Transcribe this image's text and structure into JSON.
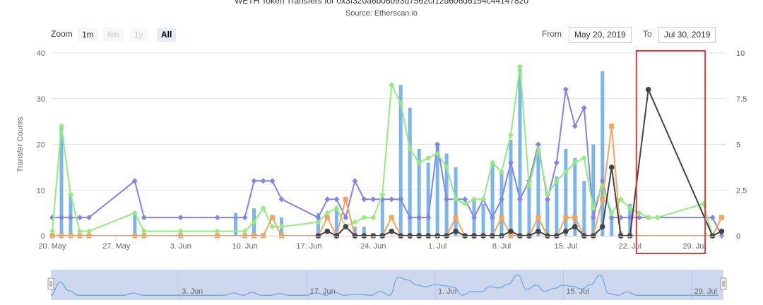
{
  "header": {
    "title": "WETH Token Transfers for 0x3f320a6b06b93d7562cf12d606d6154c44147820",
    "subtitle": "Source: Etherscan.io"
  },
  "zoom": {
    "label": "Zoom",
    "buttons": [
      {
        "label": "1m",
        "state": "normal"
      },
      {
        "label": "6m",
        "state": "disabled"
      },
      {
        "label": "1y",
        "state": "disabled"
      },
      {
        "label": "All",
        "state": "active"
      }
    ]
  },
  "range": {
    "from_label": "From",
    "from_value": "May 20, 2019",
    "to_label": "To",
    "to_value": "Jul 30, 2019"
  },
  "colors": {
    "bars": "#7cb5ec",
    "purple": "#8085e9",
    "green": "#90ed7d",
    "orange": "#f7a35c",
    "dark": "#434348",
    "highlight": "#e53935",
    "navigator_fill": "#cdd8ee"
  },
  "chart_data": {
    "type": "line",
    "start_date": "2019-05-20",
    "ylabel": "Transfer Counts",
    "yticks_left": [
      "0",
      "10",
      "20",
      "30",
      "40"
    ],
    "yticks_right": [
      "0",
      "2.5",
      "5",
      "7.5",
      "10"
    ],
    "ylim_left": [
      0,
      40
    ],
    "ylim_right": [
      0,
      10
    ],
    "xticks": [
      {
        "label": "20. May",
        "day": 0
      },
      {
        "label": "27. May",
        "day": 7
      },
      {
        "label": "3. Jun",
        "day": 14
      },
      {
        "label": "10. Jun",
        "day": 21
      },
      {
        "label": "17. Jun",
        "day": 28
      },
      {
        "label": "24. Jun",
        "day": 35
      },
      {
        "label": "1. Jul",
        "day": 42
      },
      {
        "label": "8. Jul",
        "day": 49
      },
      {
        "label": "15. Jul",
        "day": 56
      },
      {
        "label": "22. Jul",
        "day": 63
      },
      {
        "label": "29. Jul",
        "day": 70
      }
    ],
    "navigator_ticks": [
      {
        "label": "3. Jun",
        "day": 14
      },
      {
        "label": "17. Jun",
        "day": 28
      },
      {
        "label": "1. Jul",
        "day": 42
      },
      {
        "label": "15. Jul",
        "day": 56
      },
      {
        "label": "29. Jul",
        "day": 70
      }
    ],
    "highlight_days": [
      63.7,
      71.2
    ],
    "series": [
      {
        "name": "Transfers",
        "kind": "bar",
        "axis": "left",
        "data": [
          [
            1,
            24
          ],
          [
            2,
            9
          ],
          [
            9,
            5
          ],
          [
            20,
            5
          ],
          [
            22,
            6
          ],
          [
            25,
            4
          ],
          [
            29,
            5
          ],
          [
            31,
            6
          ],
          [
            33,
            2
          ],
          [
            34,
            2
          ],
          [
            36,
            8
          ],
          [
            38,
            33
          ],
          [
            39,
            28
          ],
          [
            40,
            19
          ],
          [
            41,
            16
          ],
          [
            42,
            20
          ],
          [
            43,
            18
          ],
          [
            44,
            15
          ],
          [
            46,
            8
          ],
          [
            47,
            7
          ],
          [
            48,
            16
          ],
          [
            49,
            14
          ],
          [
            50,
            21
          ],
          [
            51,
            37
          ],
          [
            52,
            11
          ],
          [
            53,
            19
          ],
          [
            54,
            8
          ],
          [
            55,
            13
          ],
          [
            56,
            19
          ],
          [
            57,
            17
          ],
          [
            58,
            12
          ],
          [
            59,
            20
          ],
          [
            60,
            36
          ],
          [
            61,
            4
          ],
          [
            62,
            1
          ],
          [
            63,
            7
          ]
        ]
      },
      {
        "name": "Purple",
        "kind": "line",
        "axis": "left",
        "data": [
          [
            0,
            4
          ],
          [
            1,
            4
          ],
          [
            2,
            4
          ],
          [
            3,
            4
          ],
          [
            4,
            4
          ],
          [
            9,
            12
          ],
          [
            10,
            4
          ],
          [
            14,
            4
          ],
          [
            18,
            4
          ],
          [
            21,
            4
          ],
          [
            22,
            12
          ],
          [
            23,
            12
          ],
          [
            24,
            12
          ],
          [
            25,
            8
          ],
          [
            29,
            4
          ],
          [
            30,
            8
          ],
          [
            31,
            8
          ],
          [
            32,
            4
          ],
          [
            33,
            12
          ],
          [
            34,
            8
          ],
          [
            35,
            8
          ],
          [
            36,
            8
          ],
          [
            37,
            8
          ],
          [
            38,
            8
          ],
          [
            39,
            4
          ],
          [
            40,
            4
          ],
          [
            41,
            4
          ],
          [
            42,
            20
          ],
          [
            43,
            8
          ],
          [
            44,
            8
          ],
          [
            45,
            8
          ],
          [
            46,
            4
          ],
          [
            47,
            8
          ],
          [
            48,
            4
          ],
          [
            49,
            8
          ],
          [
            50,
            16
          ],
          [
            51,
            8
          ],
          [
            52,
            12
          ],
          [
            53,
            20
          ],
          [
            54,
            8
          ],
          [
            55,
            16
          ],
          [
            56,
            32
          ],
          [
            57,
            24
          ],
          [
            58,
            28
          ],
          [
            59,
            4
          ],
          [
            60,
            12
          ],
          [
            61,
            4
          ],
          [
            62,
            4
          ],
          [
            63,
            4
          ],
          [
            64,
            4
          ],
          [
            65,
            4
          ],
          [
            66,
            4
          ],
          [
            72,
            4
          ],
          [
            73,
            0
          ]
        ]
      },
      {
        "name": "Green",
        "kind": "line",
        "axis": "left",
        "data": [
          [
            0,
            1
          ],
          [
            1,
            24
          ],
          [
            2,
            9
          ],
          [
            3,
            1
          ],
          [
            4,
            1
          ],
          [
            9,
            5
          ],
          [
            10,
            1
          ],
          [
            14,
            1
          ],
          [
            18,
            1
          ],
          [
            21,
            1
          ],
          [
            22,
            3
          ],
          [
            23,
            6
          ],
          [
            24,
            2
          ],
          [
            25,
            2
          ],
          [
            29,
            3
          ],
          [
            30,
            5
          ],
          [
            31,
            6
          ],
          [
            32,
            2
          ],
          [
            33,
            3
          ],
          [
            34,
            4
          ],
          [
            35,
            4
          ],
          [
            36,
            9
          ],
          [
            37,
            33
          ],
          [
            38,
            29
          ],
          [
            39,
            19
          ],
          [
            40,
            16
          ],
          [
            41,
            17
          ],
          [
            42,
            18
          ],
          [
            43,
            15
          ],
          [
            44,
            8
          ],
          [
            45,
            7
          ],
          [
            46,
            8
          ],
          [
            47,
            8
          ],
          [
            48,
            16
          ],
          [
            49,
            14
          ],
          [
            50,
            22
          ],
          [
            51,
            37
          ],
          [
            52,
            11
          ],
          [
            53,
            19
          ],
          [
            54,
            9
          ],
          [
            55,
            12
          ],
          [
            56,
            14
          ],
          [
            57,
            16
          ],
          [
            58,
            17
          ],
          [
            59,
            6
          ],
          [
            60,
            11
          ],
          [
            61,
            5
          ],
          [
            62,
            8
          ],
          [
            63,
            6
          ],
          [
            64,
            5
          ],
          [
            65,
            4
          ],
          [
            66,
            4
          ],
          [
            71,
            7
          ],
          [
            72,
            0
          ],
          [
            73,
            1
          ]
        ]
      },
      {
        "name": "Orange",
        "kind": "line",
        "axis": "right",
        "data": [
          [
            0,
            0
          ],
          [
            1,
            0
          ],
          [
            2,
            0
          ],
          [
            3,
            0
          ],
          [
            4,
            0
          ],
          [
            9,
            0
          ],
          [
            10,
            0
          ],
          [
            14,
            0
          ],
          [
            18,
            0
          ],
          [
            21,
            0
          ],
          [
            22,
            0
          ],
          [
            23,
            0
          ],
          [
            24,
            1
          ],
          [
            25,
            0
          ],
          [
            29,
            0
          ],
          [
            30,
            1
          ],
          [
            31,
            0
          ],
          [
            32,
            2
          ],
          [
            33,
            0
          ],
          [
            34,
            0
          ],
          [
            35,
            0
          ],
          [
            36,
            0
          ],
          [
            37,
            1
          ],
          [
            38,
            0
          ],
          [
            39,
            0
          ],
          [
            40,
            0
          ],
          [
            41,
            0
          ],
          [
            42,
            0
          ],
          [
            43,
            0
          ],
          [
            44,
            1
          ],
          [
            45,
            0
          ],
          [
            46,
            0
          ],
          [
            47,
            0
          ],
          [
            48,
            0
          ],
          [
            49,
            1
          ],
          [
            50,
            0
          ],
          [
            51,
            0
          ],
          [
            52,
            0
          ],
          [
            53,
            1
          ],
          [
            54,
            0
          ],
          [
            55,
            0
          ],
          [
            56,
            1
          ],
          [
            57,
            1
          ],
          [
            58,
            0
          ],
          [
            59,
            0
          ],
          [
            60,
            2
          ],
          [
            61,
            6
          ],
          [
            62,
            0
          ],
          [
            63,
            0
          ],
          [
            72,
            0
          ],
          [
            73,
            1
          ]
        ]
      },
      {
        "name": "Dark",
        "kind": "line",
        "axis": "right",
        "data": [
          [
            29,
            0
          ],
          [
            30,
            0.25
          ],
          [
            31,
            0
          ],
          [
            32,
            0.5
          ],
          [
            33,
            0
          ],
          [
            34,
            0
          ],
          [
            35,
            0
          ],
          [
            36,
            0
          ],
          [
            37,
            0.25
          ],
          [
            38,
            0
          ],
          [
            39,
            0
          ],
          [
            40,
            0
          ],
          [
            41,
            0
          ],
          [
            42,
            0
          ],
          [
            43,
            0
          ],
          [
            44,
            0.25
          ],
          [
            45,
            0
          ],
          [
            46,
            0
          ],
          [
            47,
            0
          ],
          [
            48,
            0
          ],
          [
            49,
            0
          ],
          [
            50,
            0.25
          ],
          [
            51,
            0
          ],
          [
            52,
            0
          ],
          [
            53,
            0.25
          ],
          [
            54,
            0
          ],
          [
            55,
            0
          ],
          [
            56,
            0.25
          ],
          [
            57,
            0.5
          ],
          [
            58,
            0
          ],
          [
            59,
            0
          ],
          [
            60,
            0.5
          ],
          [
            61,
            3.75
          ],
          [
            62,
            0
          ],
          [
            63,
            0
          ],
          [
            65,
            8
          ],
          [
            72,
            0
          ],
          [
            73,
            0.25
          ]
        ]
      }
    ]
  }
}
